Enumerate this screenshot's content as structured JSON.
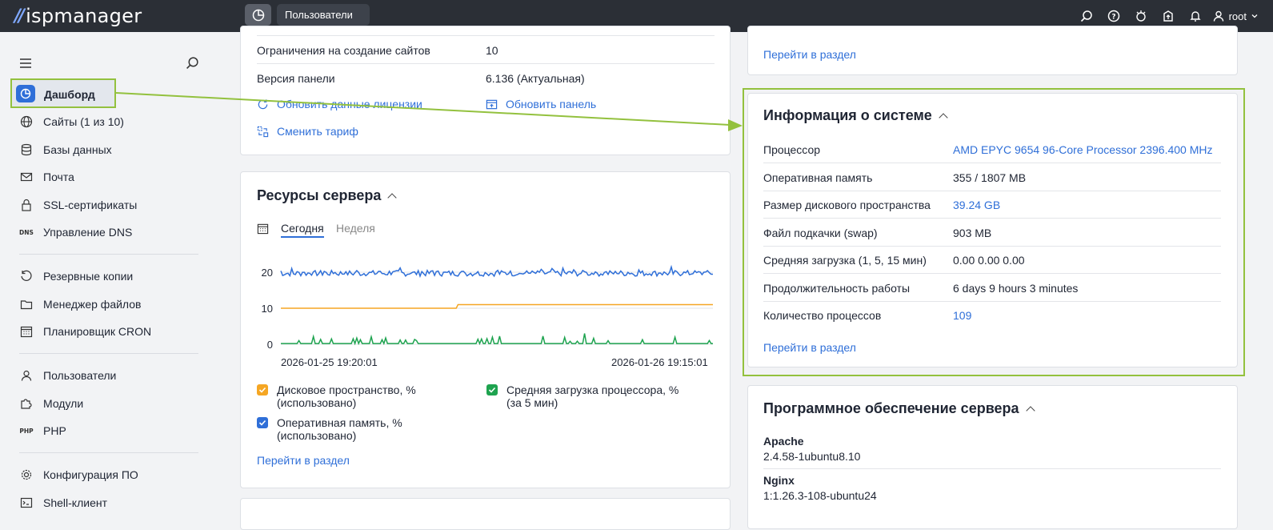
{
  "topbar": {
    "logo": "ispmanager",
    "active_tab": "Пользователи",
    "user": "root",
    "icons": [
      "search-icon",
      "help-icon",
      "theme-icon",
      "update-icon",
      "bell-icon",
      "user-icon"
    ]
  },
  "sidebar": {
    "active": "Дашборд",
    "items": [
      {
        "label": "Сайты (1 из 10)",
        "icon": "globe-icon"
      },
      {
        "label": "Базы данных",
        "icon": "database-icon"
      },
      {
        "label": "Почта",
        "icon": "mail-icon"
      },
      {
        "label": "SSL-сертификаты",
        "icon": "lock-icon"
      },
      {
        "label": "Управление DNS",
        "icon": "dns-icon"
      },
      {
        "label": "Резервные копии",
        "icon": "backup-icon"
      },
      {
        "label": "Менеджер файлов",
        "icon": "folder-icon"
      },
      {
        "label": "Планировщик CRON",
        "icon": "calendar-icon"
      },
      {
        "label": "Пользователи",
        "icon": "user-icon"
      },
      {
        "label": "Модули",
        "icon": "puzzle-icon"
      },
      {
        "label": "PHP",
        "icon": "php-icon"
      },
      {
        "label": "Конфигурация ПО",
        "icon": "gear-icon"
      },
      {
        "label": "Shell-клиент",
        "icon": "terminal-icon"
      }
    ]
  },
  "license": {
    "rows": [
      {
        "label": "Ограничения на создание сайтов",
        "value": "10"
      },
      {
        "label": "Версия панели",
        "value": "6.136 (Актуальная)"
      }
    ],
    "update_license": "Обновить данные лицензии",
    "update_panel": "Обновить панель",
    "change_plan": "Сменить тариф"
  },
  "resources": {
    "title": "Ресурсы сервера",
    "tab_today": "Сегодня",
    "tab_week": "Неделя",
    "x_start": "2026-01-25 19:20:01",
    "x_end": "2026-01-26 19:15:01",
    "legend": {
      "disk": "Дисковое пространство, % (использовано)",
      "ram": "Оперативная память, % (использовано)",
      "cpu": "Средняя загрузка процессора, % (за 5 мин)"
    },
    "link": "Перейти в раздел"
  },
  "chart_data": {
    "type": "line",
    "yticks": [
      0,
      10,
      20
    ],
    "ylim": [
      0,
      25
    ],
    "x_start": "2026-01-25 19:20:01",
    "x_end": "2026-01-26 19:15:01",
    "series": [
      {
        "name": "Оперативная память, % (использовано)",
        "color": "#2f6fd8",
        "approx_level": 20
      },
      {
        "name": "Дисковое пространство, % (использовано)",
        "color": "#f5a623",
        "approx_values": [
          10,
          11
        ]
      },
      {
        "name": "Средняя загрузка процессора, % (за 5 мин)",
        "color": "#1ea34f",
        "approx_level": 0
      }
    ]
  },
  "top_right_link": "Перейти в раздел",
  "sysinfo": {
    "title": "Информация о системе",
    "rows": [
      {
        "label": "Процессор",
        "value": "AMD EPYC 9654 96-Core Processor 2396.400 MHz",
        "link": true
      },
      {
        "label": "Оперативная память",
        "value": "355 / 1807 MB",
        "link": false
      },
      {
        "label": "Размер дискового пространства",
        "value": "39.24 GB",
        "link": true
      },
      {
        "label": "Файл подкачки (swap)",
        "value": "903 MB",
        "link": false
      },
      {
        "label": "Средняя загрузка (1, 5, 15 мин)",
        "value": "0.00 0.00 0.00",
        "link": false
      },
      {
        "label": "Продолжительность работы",
        "value": "6 days 9 hours 3 minutes",
        "link": false
      },
      {
        "label": "Количество процессов",
        "value": "109",
        "link": true
      }
    ],
    "link": "Перейти в раздел"
  },
  "software": {
    "title": "Программное обеспечение сервера",
    "items": [
      {
        "name": "Apache",
        "version": "2.4.58-1ubuntu8.10"
      },
      {
        "name": "Nginx",
        "version": "1:1.26.3-108-ubuntu24"
      }
    ]
  },
  "colors": {
    "accent": "#2f6fd8",
    "highlight": "#93c13e",
    "topbar": "#2b2f36"
  }
}
